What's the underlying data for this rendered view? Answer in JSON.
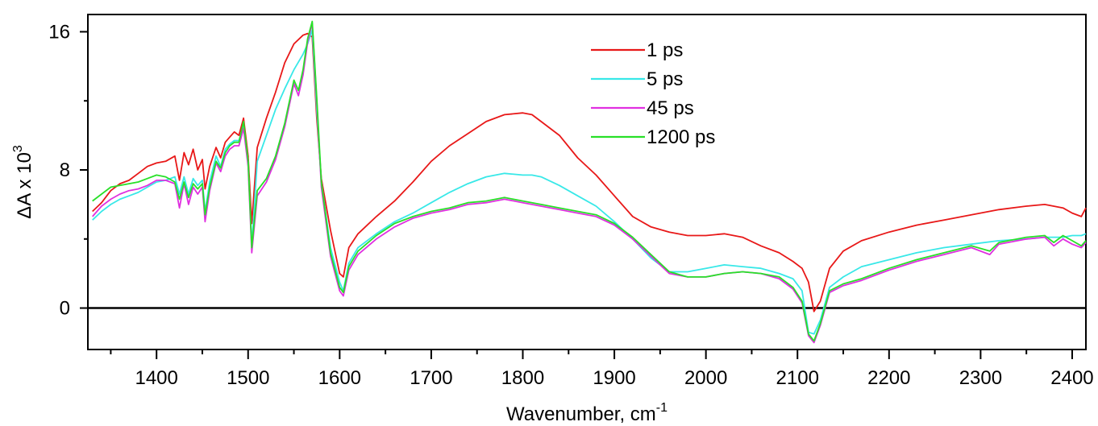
{
  "chart_data": {
    "type": "line",
    "xlabel": "Wavenumber, cm",
    "xlabel_sup": "-1",
    "ylabel": "ΔA x 10",
    "ylabel_sup": "3",
    "xlim": [
      1325,
      2415
    ],
    "ylim": [
      -2.4,
      17
    ],
    "x_ticks": [
      1400,
      1500,
      1600,
      1700,
      1800,
      1900,
      2000,
      2100,
      2200,
      2300,
      2400
    ],
    "y_ticks": [
      0,
      8,
      16
    ],
    "zero_line": true,
    "grid": false,
    "legend_position": "top-center",
    "series": [
      {
        "name": "1 ps",
        "color": "#e81818",
        "x": [
          1330,
          1340,
          1350,
          1360,
          1370,
          1380,
          1390,
          1400,
          1410,
          1420,
          1425,
          1430,
          1435,
          1440,
          1445,
          1450,
          1453,
          1458,
          1465,
          1470,
          1475,
          1480,
          1485,
          1490,
          1495,
          1500,
          1504,
          1510,
          1520,
          1530,
          1540,
          1550,
          1560,
          1565,
          1570,
          1575,
          1580,
          1590,
          1600,
          1604,
          1610,
          1620,
          1640,
          1660,
          1680,
          1700,
          1720,
          1740,
          1760,
          1780,
          1800,
          1810,
          1820,
          1840,
          1860,
          1880,
          1900,
          1920,
          1940,
          1960,
          1980,
          2000,
          2020,
          2040,
          2060,
          2080,
          2095,
          2105,
          2112,
          2118,
          2125,
          2135,
          2150,
          2170,
          2200,
          2230,
          2260,
          2290,
          2320,
          2350,
          2370,
          2390,
          2400,
          2410,
          2415
        ],
        "y": [
          5.6,
          6.1,
          6.8,
          7.2,
          7.4,
          7.8,
          8.2,
          8.4,
          8.5,
          8.8,
          7.4,
          9.0,
          8.3,
          9.2,
          8.0,
          8.6,
          6.9,
          8.2,
          9.3,
          8.7,
          9.6,
          9.9,
          10.2,
          10.0,
          11.0,
          8.8,
          4.9,
          9.3,
          11.0,
          12.5,
          14.2,
          15.3,
          15.8,
          15.9,
          15.7,
          11.0,
          7.5,
          4.5,
          2.0,
          1.8,
          3.5,
          4.3,
          5.3,
          6.2,
          7.3,
          8.5,
          9.4,
          10.1,
          10.8,
          11.2,
          11.3,
          11.2,
          10.8,
          10.0,
          8.7,
          7.7,
          6.5,
          5.3,
          4.7,
          4.4,
          4.2,
          4.2,
          4.3,
          4.1,
          3.6,
          3.2,
          2.7,
          2.3,
          1.5,
          -0.2,
          0.4,
          2.3,
          3.3,
          3.9,
          4.4,
          4.8,
          5.1,
          5.4,
          5.7,
          5.9,
          6.0,
          5.8,
          5.5,
          5.3,
          5.8
        ]
      },
      {
        "name": "5 ps",
        "color": "#38e8e8",
        "x": [
          1330,
          1340,
          1350,
          1360,
          1370,
          1380,
          1390,
          1400,
          1410,
          1420,
          1425,
          1430,
          1435,
          1440,
          1445,
          1450,
          1453,
          1458,
          1465,
          1470,
          1475,
          1480,
          1485,
          1490,
          1495,
          1500,
          1504,
          1510,
          1520,
          1530,
          1540,
          1550,
          1560,
          1565,
          1570,
          1575,
          1580,
          1590,
          1600,
          1604,
          1610,
          1620,
          1640,
          1660,
          1680,
          1700,
          1720,
          1740,
          1760,
          1780,
          1800,
          1810,
          1820,
          1840,
          1860,
          1880,
          1900,
          1920,
          1940,
          1960,
          1980,
          2000,
          2020,
          2040,
          2060,
          2080,
          2095,
          2105,
          2112,
          2118,
          2125,
          2135,
          2150,
          2170,
          2200,
          2230,
          2260,
          2290,
          2320,
          2350,
          2370,
          2390,
          2400,
          2410,
          2415
        ],
        "y": [
          5.1,
          5.6,
          6.0,
          6.3,
          6.5,
          6.7,
          7.0,
          7.3,
          7.4,
          7.6,
          6.6,
          7.6,
          6.6,
          7.5,
          7.1,
          7.4,
          5.6,
          7.3,
          8.8,
          8.2,
          9.2,
          9.5,
          9.7,
          9.7,
          10.6,
          8.5,
          3.6,
          8.5,
          10.0,
          11.5,
          12.7,
          13.8,
          14.7,
          15.3,
          16.1,
          11.5,
          7.3,
          3.5,
          1.5,
          1.0,
          2.6,
          3.5,
          4.3,
          5.0,
          5.5,
          6.1,
          6.7,
          7.2,
          7.6,
          7.8,
          7.7,
          7.7,
          7.6,
          7.1,
          6.5,
          5.9,
          5.0,
          4.0,
          2.9,
          2.1,
          2.1,
          2.3,
          2.5,
          2.4,
          2.3,
          2.0,
          1.7,
          1.0,
          -1.4,
          -1.5,
          -0.7,
          1.2,
          1.8,
          2.4,
          2.8,
          3.2,
          3.5,
          3.7,
          3.9,
          4.0,
          4.1,
          4.1,
          4.2,
          4.2,
          4.3
        ]
      },
      {
        "name": "45 ps",
        "color": "#e030e0",
        "x": [
          1330,
          1340,
          1350,
          1360,
          1370,
          1380,
          1390,
          1400,
          1410,
          1420,
          1425,
          1430,
          1435,
          1440,
          1445,
          1450,
          1453,
          1458,
          1465,
          1470,
          1475,
          1480,
          1485,
          1490,
          1495,
          1500,
          1504,
          1510,
          1520,
          1530,
          1540,
          1550,
          1555,
          1560,
          1565,
          1570,
          1575,
          1580,
          1590,
          1600,
          1604,
          1610,
          1620,
          1640,
          1660,
          1680,
          1700,
          1720,
          1740,
          1760,
          1780,
          1800,
          1820,
          1840,
          1860,
          1880,
          1900,
          1920,
          1940,
          1960,
          1980,
          2000,
          2020,
          2040,
          2060,
          2080,
          2095,
          2105,
          2112,
          2118,
          2125,
          2135,
          2150,
          2170,
          2200,
          2230,
          2260,
          2290,
          2310,
          2320,
          2350,
          2370,
          2380,
          2390,
          2400,
          2410,
          2415
        ],
        "y": [
          5.3,
          5.9,
          6.3,
          6.6,
          6.8,
          6.9,
          7.1,
          7.4,
          7.4,
          7.2,
          5.8,
          7.2,
          6.0,
          7.0,
          6.6,
          7.0,
          5.0,
          6.8,
          8.4,
          7.9,
          8.8,
          9.2,
          9.4,
          9.4,
          10.4,
          8.2,
          3.2,
          6.5,
          7.3,
          8.6,
          10.5,
          13.0,
          12.3,
          13.5,
          15.4,
          16.5,
          12.0,
          7.0,
          3.0,
          1.0,
          0.7,
          2.2,
          3.1,
          4.0,
          4.7,
          5.2,
          5.5,
          5.7,
          6.0,
          6.1,
          6.3,
          6.1,
          5.9,
          5.7,
          5.5,
          5.3,
          4.8,
          4.0,
          3.0,
          2.0,
          1.8,
          1.8,
          2.0,
          2.1,
          2.0,
          1.7,
          1.1,
          0.3,
          -1.6,
          -2.0,
          -1.0,
          0.9,
          1.3,
          1.6,
          2.2,
          2.7,
          3.1,
          3.5,
          3.1,
          3.7,
          4.0,
          4.1,
          3.6,
          4.0,
          3.7,
          3.5,
          3.8
        ]
      },
      {
        "name": "1200 ps",
        "color": "#28e028",
        "x": [
          1330,
          1340,
          1350,
          1360,
          1370,
          1380,
          1390,
          1400,
          1410,
          1420,
          1425,
          1430,
          1435,
          1440,
          1445,
          1450,
          1453,
          1458,
          1465,
          1470,
          1475,
          1480,
          1485,
          1490,
          1495,
          1500,
          1504,
          1510,
          1520,
          1530,
          1540,
          1550,
          1555,
          1560,
          1565,
          1570,
          1575,
          1580,
          1590,
          1600,
          1604,
          1610,
          1620,
          1640,
          1660,
          1680,
          1700,
          1720,
          1740,
          1760,
          1780,
          1800,
          1820,
          1840,
          1860,
          1880,
          1900,
          1920,
          1940,
          1960,
          1980,
          2000,
          2020,
          2040,
          2060,
          2080,
          2095,
          2105,
          2112,
          2118,
          2125,
          2135,
          2150,
          2170,
          2200,
          2230,
          2260,
          2290,
          2310,
          2320,
          2350,
          2370,
          2380,
          2390,
          2400,
          2410,
          2415
        ],
        "y": [
          6.2,
          6.6,
          7.0,
          7.1,
          7.2,
          7.3,
          7.5,
          7.7,
          7.6,
          7.3,
          6.3,
          7.3,
          6.4,
          7.2,
          6.9,
          7.2,
          5.4,
          7.0,
          8.5,
          8.1,
          9.0,
          9.4,
          9.6,
          9.6,
          10.8,
          8.5,
          3.5,
          6.8,
          7.5,
          8.8,
          10.7,
          13.2,
          12.6,
          13.8,
          15.6,
          16.6,
          12.2,
          7.3,
          3.2,
          1.2,
          0.9,
          2.4,
          3.3,
          4.2,
          4.9,
          5.3,
          5.6,
          5.8,
          6.1,
          6.2,
          6.4,
          6.2,
          6.0,
          5.8,
          5.6,
          5.4,
          4.9,
          4.1,
          3.1,
          2.1,
          1.8,
          1.8,
          2.0,
          2.1,
          2.0,
          1.8,
          1.2,
          0.4,
          -1.5,
          -1.9,
          -0.9,
          1.0,
          1.4,
          1.7,
          2.3,
          2.8,
          3.2,
          3.6,
          3.3,
          3.8,
          4.1,
          4.2,
          3.8,
          4.2,
          3.9,
          3.6,
          3.9
        ]
      }
    ]
  }
}
